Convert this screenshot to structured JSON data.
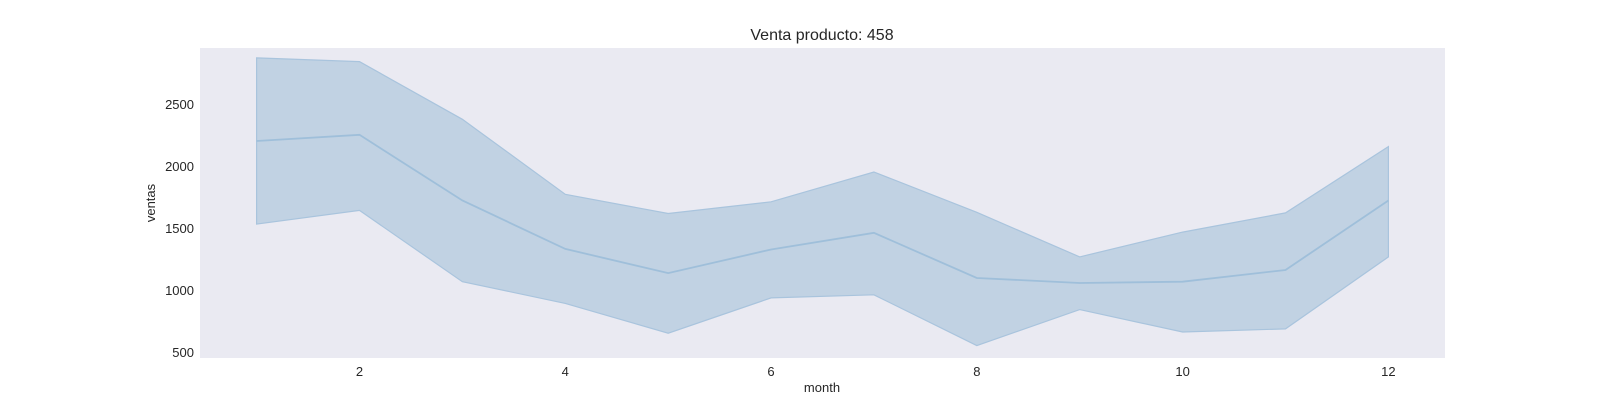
{
  "chart_data": {
    "type": "area",
    "title": "Venta producto: 458",
    "xlabel": "month",
    "ylabel": "ventas",
    "xlim": [
      0.45,
      12.55
    ],
    "ylim": [
      450,
      2950
    ],
    "xticks": [
      2,
      4,
      6,
      8,
      10,
      12
    ],
    "yticks": [
      500,
      1000,
      1500,
      2000,
      2500
    ],
    "grid": false,
    "series": [
      {
        "x": [
          1,
          2,
          3,
          4,
          5,
          6,
          7,
          8,
          9,
          10,
          11,
          12
        ],
        "y": [
          2200,
          2250,
          1720,
          1330,
          1135,
          1325,
          1460,
          1095,
          1055,
          1065,
          1160,
          1720
        ],
        "lower": [
          1530,
          1640,
          1065,
          890,
          650,
          935,
          960,
          550,
          840,
          660,
          685,
          1265
        ],
        "upper": [
          2870,
          2840,
          2375,
          1770,
          1615,
          1710,
          1950,
          1625,
          1265,
          1465,
          1620,
          2155
        ]
      }
    ],
    "colors": {
      "background": "#eaeaf2",
      "line": "#9fbfda",
      "band": "#c1d2e3",
      "band_edge": "#a9c4dd"
    }
  }
}
